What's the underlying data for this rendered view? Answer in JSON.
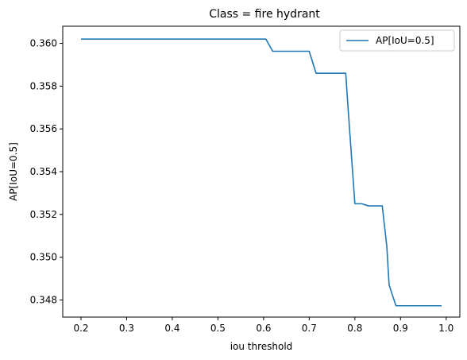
{
  "chart_data": {
    "type": "line",
    "title": "Class = fire hydrant",
    "xlabel": "iou threshold",
    "ylabel": "AP[IoU=0.5]",
    "xlim": [
      0.16,
      1.03
    ],
    "ylim": [
      0.3472,
      0.3608
    ],
    "xticks": [
      0.2,
      0.3,
      0.4,
      0.5,
      0.6,
      0.7,
      0.8,
      0.9,
      1.0
    ],
    "xtick_labels": [
      "0.2",
      "0.3",
      "0.4",
      "0.5",
      "0.6",
      "0.7",
      "0.8",
      "0.9",
      "1.0"
    ],
    "yticks": [
      0.348,
      0.35,
      0.352,
      0.354,
      0.356,
      0.358,
      0.36
    ],
    "ytick_labels": [
      "0.348",
      "0.350",
      "0.352",
      "0.354",
      "0.356",
      "0.358",
      "0.360"
    ],
    "grid": false,
    "legend_position": "top-right",
    "series": [
      {
        "name": "AP[IoU=0.5]",
        "color": "#1f77b4",
        "x": [
          0.2,
          0.25,
          0.3,
          0.35,
          0.4,
          0.45,
          0.5,
          0.55,
          0.6,
          0.605,
          0.62,
          0.64,
          0.66,
          0.68,
          0.7,
          0.715,
          0.73,
          0.75,
          0.77,
          0.78,
          0.785,
          0.8,
          0.81,
          0.815,
          0.83,
          0.85,
          0.86,
          0.87,
          0.875,
          0.89,
          0.9,
          0.95,
          0.99
        ],
        "y": [
          0.3602,
          0.3602,
          0.3602,
          0.3602,
          0.3602,
          0.3602,
          0.3602,
          0.3602,
          0.3602,
          0.3602,
          0.35963,
          0.35963,
          0.35963,
          0.35963,
          0.35963,
          0.3586,
          0.3586,
          0.3586,
          0.3586,
          0.3586,
          0.357,
          0.3525,
          0.3525,
          0.3525,
          0.3524,
          0.3524,
          0.3524,
          0.3505,
          0.3487,
          0.34773,
          0.34773,
          0.34773,
          0.34773
        ]
      }
    ]
  }
}
